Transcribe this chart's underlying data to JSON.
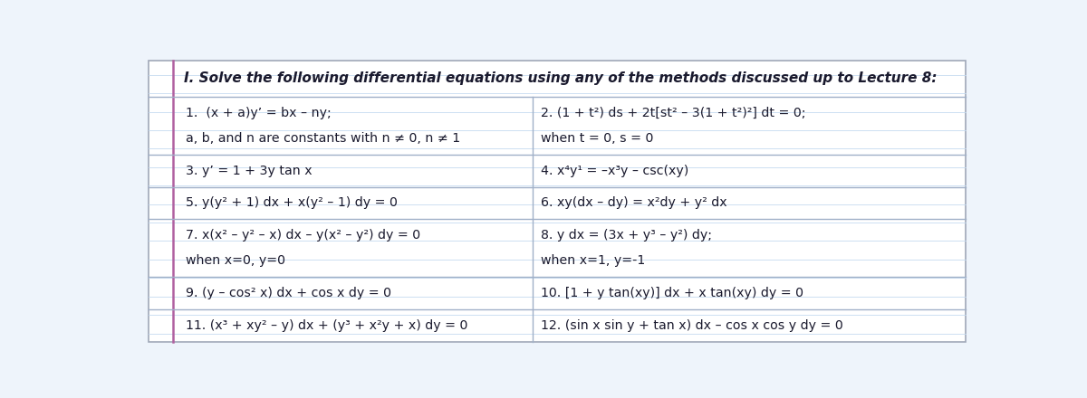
{
  "title": "I. Solve the following differential equations using any of the methods discussed up to Lecture 8:",
  "bg_color": "#eef4fb",
  "cell_bg": "#ffffff",
  "ruled_line_color": "#c5daf0",
  "border_color": "#a0a8b8",
  "accent_line_color": "#b060a0",
  "divider_color": "#a0b0c8",
  "text_color": "#1a1a2e",
  "title_fontsize": 11.0,
  "cell_fontsize": 10.2,
  "cells": [
    {
      "row": 0,
      "col": 0,
      "lines": [
        "1.  (x + a)y’ = bx – ny;",
        "a, b, and n are constants with n ≠ 0, n ≠ 1"
      ]
    },
    {
      "row": 0,
      "col": 1,
      "lines": [
        "2. (1 + t²) ds + 2t[st² – 3(1 + t²)²] dt = 0;",
        "when t = 0, s = 0"
      ]
    },
    {
      "row": 1,
      "col": 0,
      "lines": [
        "3. y’ = 1 + 3y tan x"
      ]
    },
    {
      "row": 1,
      "col": 1,
      "lines": [
        "4. x⁴y¹ = –x³y – csc(xy)"
      ]
    },
    {
      "row": 2,
      "col": 0,
      "lines": [
        "5. y(y² + 1) dx + x(y² – 1) dy = 0"
      ]
    },
    {
      "row": 2,
      "col": 1,
      "lines": [
        "6. xy(dx – dy) = x²dy + y² dx"
      ]
    },
    {
      "row": 3,
      "col": 0,
      "lines": [
        "7. x(x² – y² – x) dx – y(x² – y²) dy = 0",
        "when x=0, y=0"
      ]
    },
    {
      "row": 3,
      "col": 1,
      "lines": [
        "8. y dx = (3x + y³ – y²) dy;",
        "when x=1, y=-1"
      ]
    },
    {
      "row": 4,
      "col": 0,
      "lines": [
        "9. (y – cos² x) dx + cos x dy = 0"
      ]
    },
    {
      "row": 4,
      "col": 1,
      "lines": [
        "10. [1 + y tan(xy)] dx + x tan(xy) dy = 0"
      ]
    },
    {
      "row": 5,
      "col": 0,
      "lines": [
        "11. (x³ + xy² – y) dx + (y³ + x²y + x) dy = 0"
      ]
    },
    {
      "row": 5,
      "col": 1,
      "lines": [
        "12. (sin x sin y + tan x) dx – cos x cos y dy = 0"
      ]
    }
  ]
}
